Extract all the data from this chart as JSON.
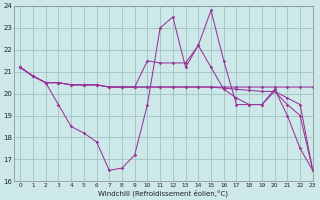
{
  "bg_color": "#cce8e8",
  "line_color": "#993399",
  "grid_color": "#99bbbb",
  "xlabel": "Windchill (Refroidissement éolien,°C)",
  "xlim": [
    -0.5,
    23
  ],
  "ylim": [
    16,
    24
  ],
  "yticks": [
    16,
    17,
    18,
    19,
    20,
    21,
    22,
    23,
    24
  ],
  "xticks": [
    0,
    1,
    2,
    3,
    4,
    5,
    6,
    7,
    8,
    9,
    10,
    11,
    12,
    13,
    14,
    15,
    16,
    17,
    18,
    19,
    20,
    21,
    22,
    23
  ],
  "series1_x": [
    0,
    1,
    2,
    3,
    4,
    5,
    6,
    7,
    8,
    9,
    10,
    11,
    12,
    13,
    14,
    15,
    16,
    17,
    18,
    19,
    20,
    21,
    22,
    23
  ],
  "series1_y": [
    21.2,
    20.8,
    20.5,
    19.5,
    18.5,
    18.2,
    17.8,
    16.5,
    16.6,
    17.2,
    19.5,
    23.0,
    23.5,
    21.2,
    22.2,
    23.8,
    21.5,
    19.5,
    19.5,
    19.5,
    20.2,
    19.0,
    17.5,
    16.5
  ],
  "series2_x": [
    0,
    1,
    2,
    3,
    4,
    5,
    6,
    7,
    8,
    9,
    10,
    11,
    12,
    13,
    14,
    15,
    16,
    17,
    18,
    19,
    20,
    21,
    22,
    23
  ],
  "series2_y": [
    21.2,
    20.8,
    20.5,
    20.5,
    20.4,
    20.4,
    20.4,
    20.3,
    20.3,
    20.3,
    21.5,
    21.4,
    21.4,
    21.4,
    22.2,
    21.2,
    20.2,
    19.8,
    19.5,
    19.5,
    20.1,
    19.5,
    19.0,
    16.5
  ],
  "series3_x": [
    0,
    1,
    2,
    3,
    4,
    5,
    6,
    7,
    8,
    9,
    10,
    11,
    12,
    13,
    14,
    15,
    16,
    17,
    18,
    19,
    20,
    21,
    22,
    23
  ],
  "series3_y": [
    21.2,
    20.8,
    20.5,
    20.5,
    20.4,
    20.4,
    20.4,
    20.3,
    20.3,
    20.3,
    20.3,
    20.3,
    20.3,
    20.3,
    20.3,
    20.3,
    20.25,
    20.2,
    20.15,
    20.1,
    20.1,
    19.8,
    19.5,
    16.5
  ],
  "series4_x": [
    0,
    1,
    2,
    3,
    4,
    5,
    6,
    7,
    8,
    9,
    10,
    11,
    12,
    13,
    14,
    15,
    16,
    17,
    18,
    19,
    20,
    21,
    22,
    23
  ],
  "series4_y": [
    21.2,
    20.8,
    20.5,
    20.5,
    20.4,
    20.4,
    20.4,
    20.3,
    20.3,
    20.3,
    20.3,
    20.3,
    20.3,
    20.3,
    20.3,
    20.3,
    20.3,
    20.3,
    20.3,
    20.3,
    20.3,
    20.3,
    20.3,
    20.3
  ]
}
